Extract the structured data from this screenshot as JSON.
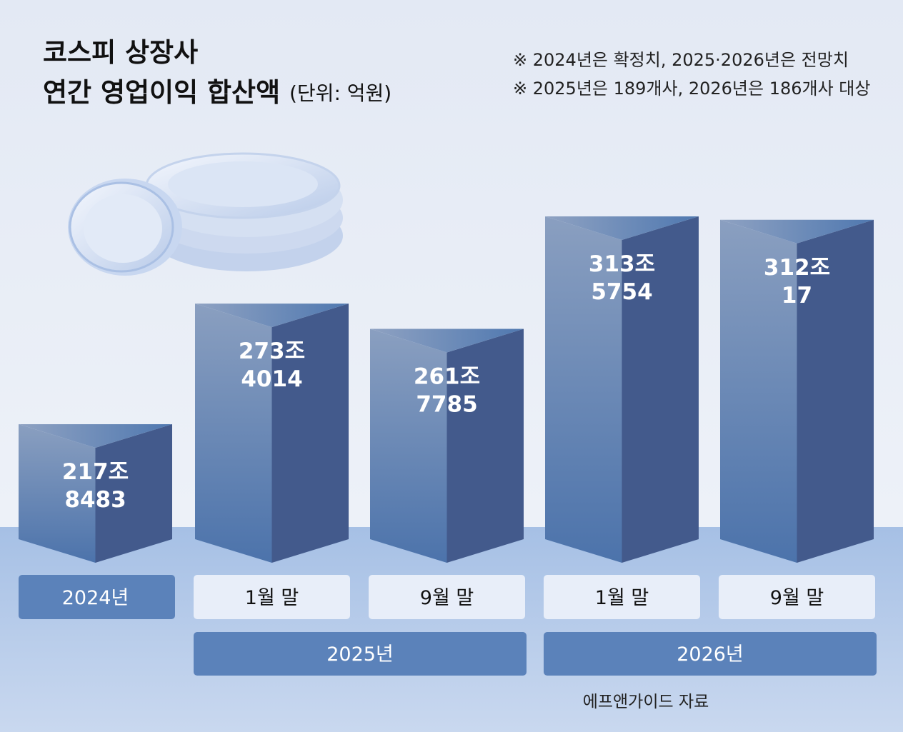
{
  "chart_data": {
    "type": "bar",
    "title_line1": "코스피 상장사",
    "title_line2": "연간 영업이익 합산액",
    "unit": "(단위: 억원)",
    "notes": [
      "※ 2024년은 확정치, 2025·2026년은 전망치",
      "※ 2025년은 189개사, 2026년은 186개사 대상"
    ],
    "categories": [
      "2024년",
      "1월 말",
      "9월 말",
      "1월 말",
      "9월 말"
    ],
    "groups": [
      {
        "label": "2025년",
        "members": [
          1,
          2
        ]
      },
      {
        "label": "2026년",
        "members": [
          3,
          4
        ]
      }
    ],
    "values": [
      2178483,
      2734014,
      2617785,
      3135754,
      3120017
    ],
    "value_labels": [
      [
        "217조",
        "8483"
      ],
      [
        "273조",
        "4014"
      ],
      [
        "261조",
        "7785"
      ],
      [
        "313조",
        "5754"
      ],
      [
        "312조",
        "17"
      ]
    ],
    "source": "에프앤가이드 자료",
    "colors": {
      "bar_front": "#4e75ad",
      "bar_side": "#435a8c",
      "bar_highlight": "#8a9fc0",
      "category_dark": "#5b82ba",
      "category_light": "#e8eef9",
      "background": "#e6ebf5",
      "floor": "#aac3e6"
    }
  }
}
